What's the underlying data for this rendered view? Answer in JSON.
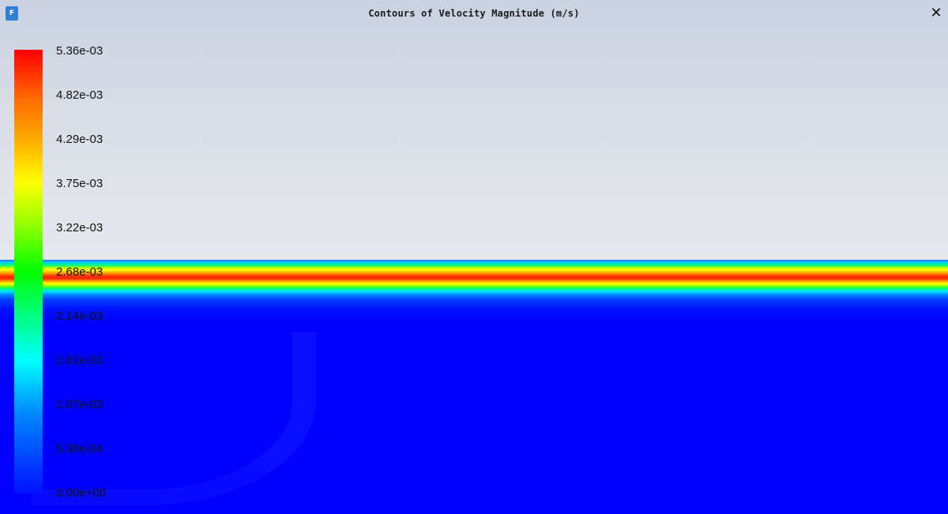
{
  "window": {
    "title": "Contours of Velocity Magnitude (m/s)",
    "app_icon_letter": "F",
    "close_glyph": "✕"
  },
  "legend": {
    "colormap": "rainbow",
    "labels": [
      "5.36e-03",
      "4.82e-03",
      "4.29e-03",
      "3.75e-03",
      "3.22e-03",
      "2.68e-03",
      "2.14e-03",
      "1.61e-03",
      "1.07e-03",
      "5.36e-04",
      "0.00e+00"
    ]
  },
  "colors": {
    "max": "#ff0000",
    "min": "#0000ff",
    "background_top": "#c9d2e0",
    "background_bottom": "#e6e8ec"
  },
  "icons": {
    "app": "fluent-app-icon",
    "close": "close-icon"
  }
}
